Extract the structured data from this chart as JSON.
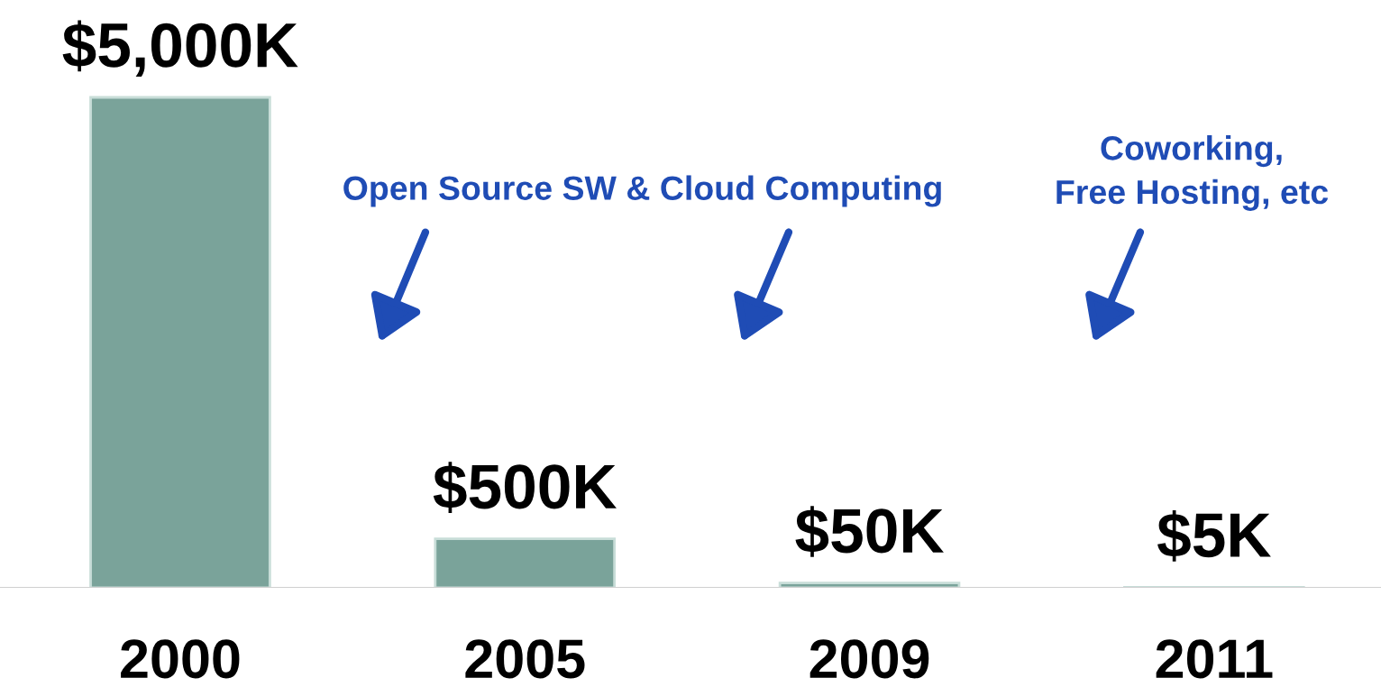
{
  "chart_data": {
    "type": "bar",
    "categories": [
      "2000",
      "2005",
      "2009",
      "2011"
    ],
    "values": [
      5000,
      500,
      50,
      5
    ],
    "value_labels": [
      "$5,000K",
      "$500K",
      "$50K",
      "$5K"
    ],
    "color": "#7aa39a",
    "annotations": [
      "Open Source SW & Cloud Computing",
      "Coworking,\nFree Hosting, etc"
    ],
    "grid": false,
    "legend": false
  }
}
